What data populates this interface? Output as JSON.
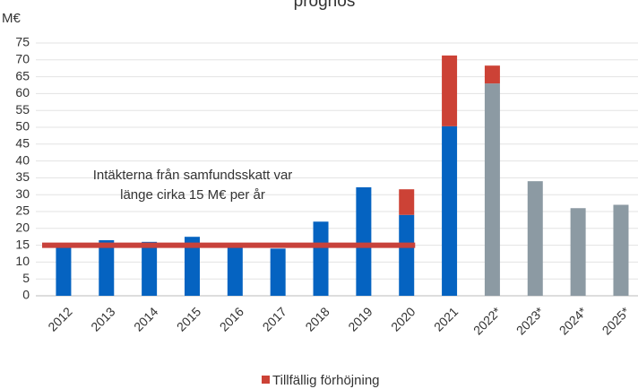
{
  "chart_data": {
    "type": "bar",
    "stacked": true,
    "title": "prognos",
    "ylabel": "M€",
    "categories": [
      "2012",
      "2013",
      "2014",
      "2015",
      "2016",
      "2017",
      "2018",
      "2019",
      "2020",
      "2021",
      "2022*",
      "2023*",
      "2024*",
      "2025*"
    ],
    "series": [
      {
        "colors": [
          "#0563c1",
          "#0563c1",
          "#0563c1",
          "#0563c1",
          "#0563c1",
          "#0563c1",
          "#0563c1",
          "#0563c1",
          "#0563c1",
          "#0563c1",
          "#8c9aa3",
          "#8c9aa3",
          "#8c9aa3",
          "#8c9aa3"
        ],
        "values": [
          14.5,
          16.5,
          16,
          17.5,
          15,
          14,
          22,
          32.2,
          24,
          50.3,
          63,
          34,
          26,
          27
        ]
      },
      {
        "name": "Tillfällig förhöjning",
        "color": "#cc4236",
        "values": [
          null,
          null,
          null,
          null,
          null,
          null,
          null,
          null,
          7.6,
          21,
          5.3,
          null,
          null,
          null
        ]
      }
    ],
    "reference_line": {
      "value": 15,
      "color": "#c8423b"
    },
    "annotation": [
      "Intäkterna från samfundsskatt var",
      "länge cirka 15 M€ per år"
    ],
    "ylim": [
      0,
      75
    ],
    "yticks": [
      0,
      5,
      10,
      15,
      20,
      25,
      30,
      35,
      40,
      45,
      50,
      55,
      60,
      65,
      70,
      75
    ],
    "grid": true,
    "legend": "bottom"
  }
}
